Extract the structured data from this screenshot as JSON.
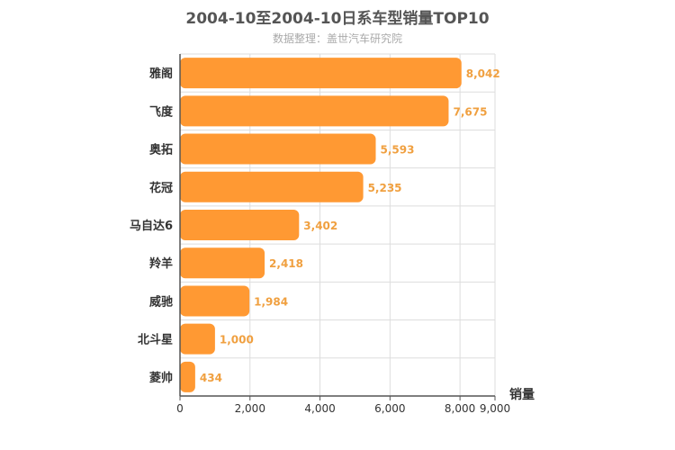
{
  "chart_data": {
    "type": "bar",
    "orientation": "horizontal",
    "title": "2004-10至2004-10日系车型销量TOP10",
    "subtitle": "数据整理：盖世汽车研究院",
    "categories": [
      "雅阁",
      "飞度",
      "奥拓",
      "花冠",
      "马自达6",
      "羚羊",
      "威驰",
      "北斗星",
      "菱帅"
    ],
    "values": [
      8042,
      7675,
      5593,
      5235,
      3402,
      2418,
      1984,
      1000,
      434
    ],
    "value_labels": [
      "8,042",
      "7,675",
      "5,593",
      "5,235",
      "3,402",
      "2,418",
      "1,984",
      "1,000",
      "434"
    ],
    "xlabel": "销量",
    "ylabel": "",
    "xlim": [
      0,
      9000
    ],
    "x_ticks": [
      0,
      2000,
      4000,
      6000,
      8000,
      9000
    ],
    "x_tick_labels": [
      "0",
      "2,000",
      "4,000",
      "6,000",
      "8,000",
      "9,000"
    ],
    "grid": true,
    "bar_color": "#ff9933",
    "label_color": "#f0a040"
  }
}
